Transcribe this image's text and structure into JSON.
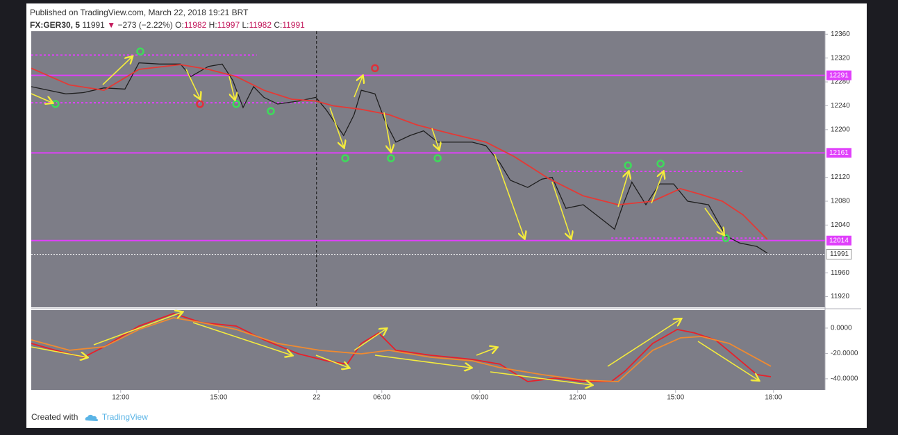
{
  "header": {
    "published": "Published on TradingView.com, March 22, 2018 19:21 BRT",
    "symbol": "FX:GER30, 5",
    "last": 11991,
    "direction": "▼",
    "change": "−273 (−2.22%)",
    "open_label": "O:",
    "open": 11982,
    "high_label": "H:",
    "high": 11997,
    "low_label": "L:",
    "low": 11982,
    "close_label": "C:",
    "close": 11991
  },
  "chart_data": [
    {
      "type": "line",
      "xlim": [
        9.26,
        33.58
      ],
      "ylim": [
        11902,
        12365
      ],
      "yticks": [
        12360,
        12320,
        12280,
        12240,
        12200,
        12120,
        12080,
        12040,
        11960,
        11920
      ],
      "session_break": 18,
      "series": [
        {
          "color": "#1e1e1e",
          "x": [
            9.26,
            9.79,
            10.32,
            10.86,
            11.49,
            12.13,
            12.56,
            13.19,
            13.83,
            14.15,
            14.69,
            15.11,
            15.43,
            15.75,
            16.07,
            16.39,
            16.81,
            17.45,
            17.98,
            18.3,
            18.83,
            19.15,
            19.37,
            19.79,
            20.11,
            20.43,
            20.86,
            21.28,
            21.71,
            22.13,
            22.77,
            23.19,
            23.62,
            23.94,
            24.47,
            24.9,
            25.22,
            25.64,
            26.17,
            26.71,
            27.13,
            27.35,
            27.66,
            28.09,
            28.51,
            28.94,
            29.37,
            30.01,
            30.54,
            30.96,
            31.49,
            31.81
          ],
          "values": [
            12272,
            12266,
            12260,
            12262,
            12270,
            12268,
            12312,
            12310,
            12310,
            12289,
            12306,
            12310,
            12283,
            12237,
            12272,
            12254,
            12243,
            12248,
            12254,
            12233,
            12190,
            12225,
            12266,
            12260,
            12213,
            12179,
            12190,
            12198,
            12179,
            12179,
            12179,
            12173,
            12144,
            12115,
            12103,
            12117,
            12120,
            12068,
            12074,
            12051,
            12033,
            12068,
            12112,
            12074,
            12109,
            12109,
            12080,
            12074,
            12022,
            12010,
            12004,
            11993
          ]
        },
        {
          "color": "#e53935",
          "x": [
            9.26,
            10.43,
            11.49,
            12.56,
            13.83,
            14.69,
            15.54,
            16.39,
            17.24,
            17.98,
            18.51,
            19.37,
            20.22,
            21.07,
            22.13,
            23.19,
            24.05,
            25.11,
            26.17,
            27.24,
            28.3,
            29.15,
            29.79,
            30.43,
            31.07,
            31.81
          ],
          "values": [
            12303,
            12275,
            12266,
            12301,
            12309,
            12301,
            12289,
            12266,
            12251,
            12248,
            12240,
            12234,
            12225,
            12208,
            12193,
            12179,
            12155,
            12118,
            12089,
            12074,
            12080,
            12101,
            12091,
            12080,
            12057,
            12016
          ]
        }
      ],
      "levels": [
        12291,
        12161,
        12014
      ],
      "level_color": "#e040fb",
      "dashed_levels": [
        {
          "value": 12325,
          "x": [
            9.26,
            16.17
          ]
        },
        {
          "value": 12245,
          "x": [
            9.26,
            17.98
          ]
        },
        {
          "value": 12130,
          "x": [
            25.11,
            31.07
          ]
        },
        {
          "value": 12018,
          "x": [
            27.03,
            31.71
          ]
        }
      ],
      "signals": [
        {
          "x": 10.0,
          "value": 12243,
          "color": "#3ddc5a"
        },
        {
          "x": 12.6,
          "value": 12331,
          "color": "#3ddc5a"
        },
        {
          "x": 14.43,
          "value": 12243,
          "color": "#e0303a"
        },
        {
          "x": 15.54,
          "value": 12243,
          "color": "#3ddc5a"
        },
        {
          "x": 16.6,
          "value": 12231,
          "color": "#3ddc5a"
        },
        {
          "x": 19.79,
          "value": 12303,
          "color": "#e0303a"
        },
        {
          "x": 18.88,
          "value": 12152,
          "color": "#3ddc5a"
        },
        {
          "x": 20.28,
          "value": 12152,
          "color": "#3ddc5a"
        },
        {
          "x": 21.71,
          "value": 12152,
          "color": "#3ddc5a"
        },
        {
          "x": 27.54,
          "value": 12140,
          "color": "#3ddc5a"
        },
        {
          "x": 28.54,
          "value": 12143,
          "color": "#3ddc5a"
        },
        {
          "x": 30.54,
          "value": 12018,
          "color": "#3ddc5a"
        }
      ],
      "last_price": 11991
    },
    {
      "type": "line",
      "xlim": [
        9.26,
        33.58
      ],
      "ylim": [
        -48.8,
        14.2
      ],
      "yticks": [
        {
          "value": 0,
          "label": "0.0000"
        },
        {
          "value": -20,
          "label": "-20.0000"
        },
        {
          "value": -40,
          "label": "-40.0000"
        }
      ],
      "xticks": [
        {
          "value": 12,
          "label": "12:00"
        },
        {
          "value": 15,
          "label": "15:00"
        },
        {
          "value": 18,
          "label": "22"
        },
        {
          "value": 20,
          "label": "06:00"
        },
        {
          "value": 23,
          "label": "09:00"
        },
        {
          "value": 26,
          "label": "12:00"
        },
        {
          "value": 29,
          "label": "15:00"
        },
        {
          "value": 32,
          "label": "18:00"
        }
      ],
      "series": [
        {
          "color": "#e8202a",
          "x": [
            9.26,
            10.0,
            10.86,
            11.49,
            12.56,
            13.62,
            14.47,
            15.54,
            16.39,
            17.45,
            18.3,
            18.94,
            19.37,
            19.9,
            20.43,
            21.49,
            22.77,
            23.62,
            24.47,
            25.32,
            26.17,
            27.03,
            27.45,
            28.3,
            29.05,
            29.58,
            30.22,
            30.86,
            31.49,
            31.92
          ],
          "values": [
            -12.1,
            -17.5,
            -23.0,
            -14.8,
            1.6,
            11.5,
            4.4,
            1.6,
            -9.3,
            -20.3,
            -25.8,
            -28.5,
            -12.1,
            -3.8,
            -17.5,
            -21.4,
            -24.7,
            -28.5,
            -42.2,
            -39.5,
            -42.2,
            -42.2,
            -34.0,
            -12.1,
            -1.1,
            -3.8,
            -9.3,
            -23.0,
            -36.7,
            -38.4
          ]
        },
        {
          "color": "#f08a30",
          "x": [
            9.26,
            10.43,
            11.49,
            12.56,
            13.62,
            14.47,
            15.54,
            16.81,
            18.09,
            19.37,
            20.22,
            21.49,
            22.77,
            23.62,
            24.9,
            26.17,
            27.24,
            28.3,
            29.15,
            29.79,
            30.64,
            31.92
          ],
          "values": [
            -9.3,
            -17.5,
            -14.8,
            -1.1,
            8.2,
            4.4,
            -1.1,
            -12.1,
            -17.5,
            -20.3,
            -17.5,
            -23.0,
            -25.8,
            -31.2,
            -36.7,
            -41.1,
            -42.2,
            -17.5,
            -7.7,
            -6.6,
            -12.1,
            -30.1
          ]
        }
      ]
    }
  ],
  "footer": {
    "created": "Created with",
    "brand": "TradingView"
  }
}
